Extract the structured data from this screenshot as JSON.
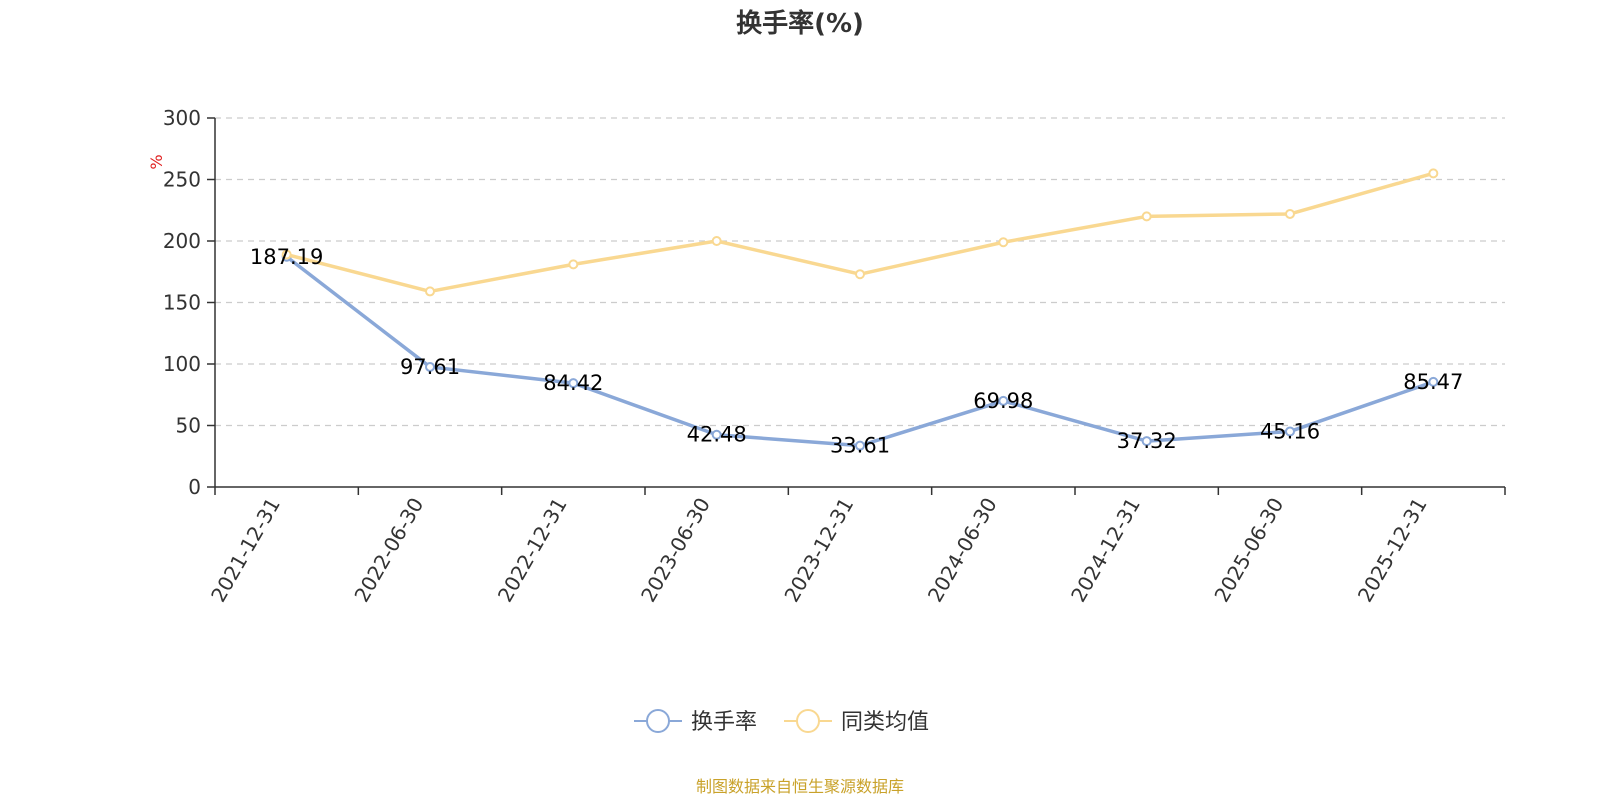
{
  "chart_data": {
    "type": "line",
    "title": "换手率(%)",
    "ylabel": "%",
    "ylim": [
      0,
      300
    ],
    "yticks": [
      0,
      50,
      100,
      150,
      200,
      250,
      300
    ],
    "grid": true,
    "legend_position": "bottom",
    "categories": [
      "2021-12-31",
      "2022-06-30",
      "2022-12-31",
      "2023-06-30",
      "2023-12-31",
      "2024-06-30",
      "2024-12-31",
      "2025-06-30",
      "2025-12-31"
    ],
    "series": [
      {
        "name": "换手率",
        "color": "#8aa8d8",
        "values": [
          187.19,
          97.61,
          84.42,
          42.48,
          33.61,
          69.98,
          37.32,
          45.16,
          85.47
        ],
        "labels": [
          "187.19",
          "97.61",
          "84.42",
          "42.48",
          "33.61",
          "69.98",
          "37.32",
          "45.16",
          "85.47"
        ]
      },
      {
        "name": "同类均值",
        "color": "#f9d891",
        "values": [
          189,
          159,
          181,
          200,
          173,
          199,
          220,
          222,
          255
        ]
      }
    ],
    "source": "制图数据来自恒生聚源数据库"
  }
}
